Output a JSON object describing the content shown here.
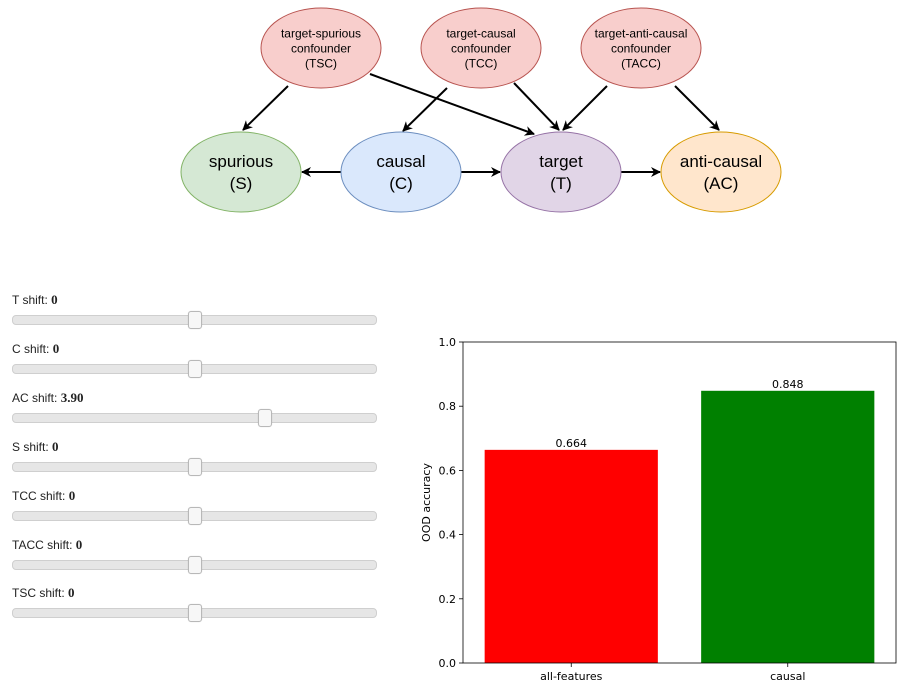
{
  "diagram": {
    "nodes": [
      {
        "id": "TSC",
        "lines": [
          "target-spurious",
          "confounder",
          "(TSC)"
        ],
        "fill": "#f8cecc",
        "stroke": "#b85450"
      },
      {
        "id": "TCC",
        "lines": [
          "target-causal",
          "confounder",
          "(TCC)"
        ],
        "fill": "#f8cecc",
        "stroke": "#b85450"
      },
      {
        "id": "TACC",
        "lines": [
          "target-anti-causal",
          "confounder",
          "(TACC)"
        ],
        "fill": "#f8cecc",
        "stroke": "#b85450"
      },
      {
        "id": "S",
        "lines": [
          "spurious",
          "(S)"
        ],
        "fill": "#d5e8d4",
        "stroke": "#82b366"
      },
      {
        "id": "C",
        "lines": [
          "causal",
          "(C)"
        ],
        "fill": "#dae8fc",
        "stroke": "#6c8ebf"
      },
      {
        "id": "T",
        "lines": [
          "target",
          "(T)"
        ],
        "fill": "#e1d5e7",
        "stroke": "#9673a6"
      },
      {
        "id": "AC",
        "lines": [
          "anti-causal",
          "(AC)"
        ],
        "fill": "#ffe6cc",
        "stroke": "#d79b00"
      }
    ],
    "edges": [
      {
        "from": "TSC",
        "to": "S"
      },
      {
        "from": "TSC",
        "to": "T"
      },
      {
        "from": "TCC",
        "to": "C"
      },
      {
        "from": "TCC",
        "to": "T"
      },
      {
        "from": "TACC",
        "to": "T"
      },
      {
        "from": "TACC",
        "to": "AC"
      },
      {
        "from": "C",
        "to": "S"
      },
      {
        "from": "C",
        "to": "T"
      },
      {
        "from": "T",
        "to": "AC"
      }
    ]
  },
  "controls": {
    "sliders": [
      {
        "id": "t",
        "label": "T shift:",
        "value": "0",
        "position": 0.5
      },
      {
        "id": "c",
        "label": "C shift:",
        "value": "0",
        "position": 0.5
      },
      {
        "id": "ac",
        "label": "AC shift:",
        "value": "3.90",
        "position": 0.695
      },
      {
        "id": "s",
        "label": "S shift:",
        "value": "0",
        "position": 0.5
      },
      {
        "id": "tcc",
        "label": "TCC shift:",
        "value": "0",
        "position": 0.5
      },
      {
        "id": "tacc",
        "label": "TACC shift:",
        "value": "0",
        "position": 0.5
      },
      {
        "id": "tsc",
        "label": "TSC shift:",
        "value": "0",
        "position": 0.5
      }
    ]
  },
  "chart_data": {
    "type": "bar",
    "categories": [
      "all-features",
      "causal"
    ],
    "values": [
      0.664,
      0.848
    ],
    "value_labels": [
      "0.664",
      "0.848"
    ],
    "colors": [
      "#ff0000",
      "#008000"
    ],
    "ylabel": "OOD accuracy",
    "ylim": [
      0.0,
      1.0
    ],
    "yticks": [
      "0.0",
      "0.2",
      "0.4",
      "0.6",
      "0.8",
      "1.0"
    ],
    "grid": false
  }
}
